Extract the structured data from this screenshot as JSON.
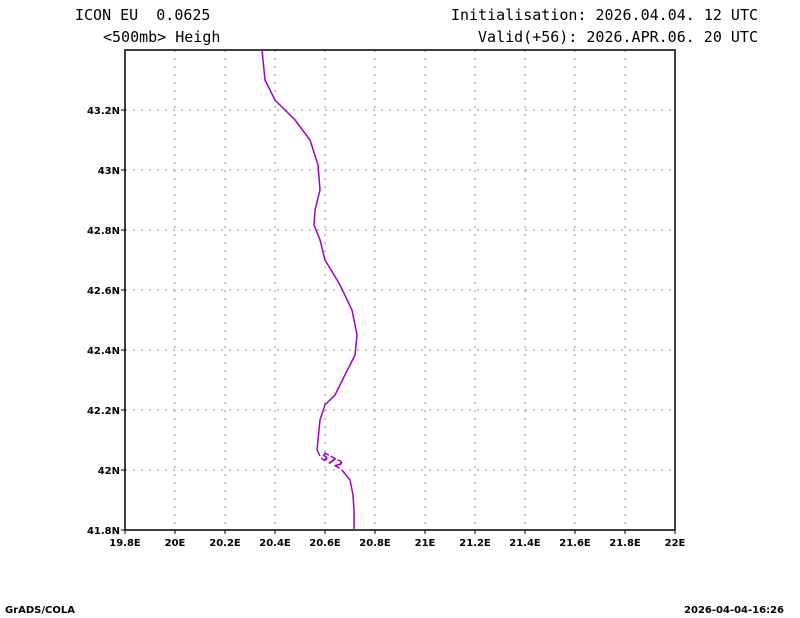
{
  "header": {
    "model": "ICON EU  0.0625",
    "field": "<500mb> Heigh",
    "init": "Initialisation: 2026.04.04. 12 UTC",
    "valid": "Valid(+56): 2026.APR.06. 20 UTC"
  },
  "footer": {
    "left": "GrADS/COLA",
    "right": "2026-04-04-16:26"
  },
  "chart_data": {
    "type": "line",
    "title": "<500mb> Heigh",
    "xlabel": "",
    "ylabel": "",
    "xlim": [
      19.8,
      22.0
    ],
    "ylim": [
      41.8,
      43.4
    ],
    "grid": true,
    "x_ticks": [
      "19.8E",
      "20E",
      "20.2E",
      "20.4E",
      "20.6E",
      "20.8E",
      "21E",
      "21.2E",
      "21.4E",
      "21.6E",
      "21.8E",
      "22E"
    ],
    "x_tick_values": [
      19.8,
      20.0,
      20.2,
      20.4,
      20.6,
      20.8,
      21.0,
      21.2,
      21.4,
      21.6,
      21.8,
      22.0
    ],
    "y_ticks": [
      "41.8N",
      "42N",
      "42.2N",
      "42.4N",
      "42.6N",
      "42.8N",
      "43N",
      "43.2N"
    ],
    "y_tick_values": [
      41.8,
      42.0,
      42.2,
      42.4,
      42.6,
      42.8,
      43.0,
      43.2
    ],
    "series": [
      {
        "name": "572",
        "color": "#a000c8",
        "label": "572",
        "label_at": [
          20.62,
          42.02
        ],
        "points_before_label": [
          [
            20.348,
            43.4
          ],
          [
            20.36,
            43.3
          ],
          [
            20.4,
            43.233
          ],
          [
            20.48,
            43.167
          ],
          [
            20.54,
            43.1
          ],
          [
            20.572,
            43.017
          ],
          [
            20.58,
            42.933
          ],
          [
            20.56,
            42.867
          ],
          [
            20.556,
            42.817
          ],
          [
            20.58,
            42.767
          ],
          [
            20.6,
            42.7
          ],
          [
            20.66,
            42.617
          ],
          [
            20.708,
            42.533
          ],
          [
            20.728,
            42.45
          ],
          [
            20.72,
            42.383
          ],
          [
            20.68,
            42.317
          ],
          [
            20.64,
            42.25
          ],
          [
            20.6,
            42.217
          ],
          [
            20.58,
            42.167
          ],
          [
            20.572,
            42.1
          ],
          [
            20.568,
            42.067
          ],
          [
            20.58,
            42.047
          ]
        ],
        "points_after_label": [
          [
            20.668,
            42.0
          ],
          [
            20.7,
            41.967
          ],
          [
            20.712,
            41.917
          ],
          [
            20.716,
            41.867
          ],
          [
            20.716,
            41.8
          ]
        ]
      }
    ]
  }
}
